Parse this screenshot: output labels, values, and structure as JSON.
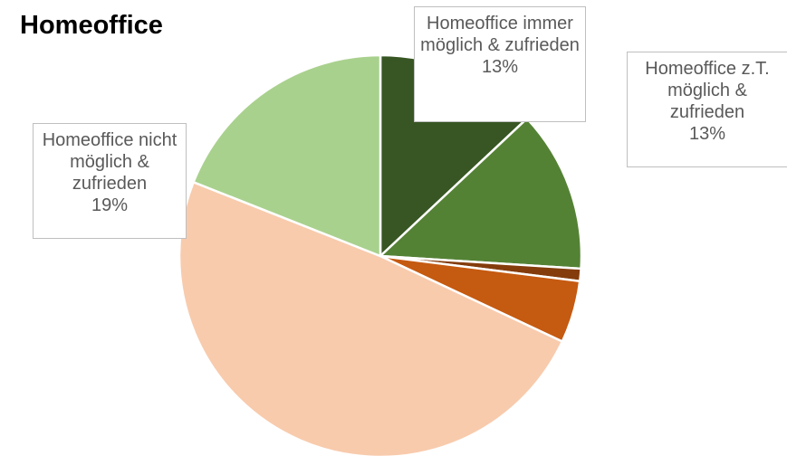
{
  "chart_data": {
    "type": "pie",
    "title": "Homeoffice",
    "categories": [
      "Homeoffice immer möglich & zufrieden",
      "Homeoffice z.T. möglich & zufrieden",
      null,
      null,
      null,
      "Homeoffice nicht möglich & zufrieden"
    ],
    "values": [
      13,
      13,
      1,
      5,
      49,
      19
    ],
    "value_labels": [
      "13%",
      "13%",
      null,
      null,
      null,
      "19%"
    ],
    "colors": [
      "#375623",
      "#548235",
      "#843c0c",
      "#c55a11",
      "#f8cbad",
      "#a9d18e"
    ]
  }
}
